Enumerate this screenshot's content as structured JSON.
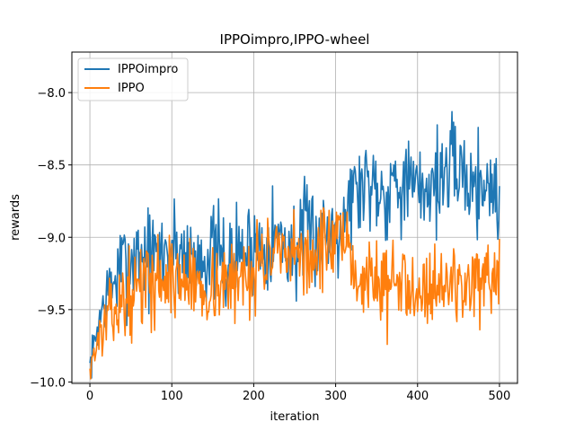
{
  "chart_data": {
    "type": "line",
    "title": "IPPOimpro,IPPO-wheel",
    "xlabel": "iteration",
    "ylabel": "rewards",
    "xlim": [
      -22,
      522
    ],
    "ylim": [
      -10.01,
      -7.72
    ],
    "xticks": [
      0,
      100,
      200,
      300,
      400,
      500
    ],
    "xtick_labels": [
      "0",
      "100",
      "200",
      "300",
      "400",
      "500"
    ],
    "yticks": [
      -10.0,
      -9.5,
      -9.0,
      -8.5,
      -8.0
    ],
    "ytick_labels": [
      "−10.0",
      "−9.5",
      "−9.0",
      "−8.5",
      "−8.0"
    ],
    "grid": true,
    "legend_position": "upper-left",
    "series": [
      {
        "name": "IPPOimpro",
        "color": "#1f77b4",
        "noise": 0.17,
        "seed": 7,
        "x": [
          0,
          5,
          10,
          15,
          20,
          30,
          40,
          50,
          60,
          70,
          80,
          90,
          100,
          110,
          120,
          130,
          140,
          150,
          160,
          170,
          180,
          190,
          200,
          210,
          220,
          230,
          240,
          250,
          260,
          270,
          280,
          290,
          300,
          310,
          320,
          330,
          340,
          350,
          360,
          370,
          380,
          390,
          400,
          410,
          420,
          430,
          440,
          450,
          460,
          470,
          480,
          490,
          500
        ],
        "y": [
          -9.9,
          -9.75,
          -9.6,
          -9.5,
          -9.4,
          -9.3,
          -9.2,
          -9.15,
          -9.1,
          -9.12,
          -9.15,
          -9.1,
          -9.05,
          -9.1,
          -9.12,
          -9.15,
          -9.12,
          -9.1,
          -9.15,
          -9.2,
          -9.1,
          -9.1,
          -9.05,
          -9.05,
          -9.0,
          -9.0,
          -9.05,
          -9.1,
          -9.0,
          -8.95,
          -9.0,
          -8.95,
          -8.9,
          -8.85,
          -8.7,
          -8.65,
          -8.6,
          -8.62,
          -8.7,
          -8.6,
          -8.6,
          -8.65,
          -8.7,
          -8.65,
          -8.6,
          -8.58,
          -8.55,
          -8.5,
          -8.6,
          -8.65,
          -8.6,
          -8.65,
          -8.75
        ]
      },
      {
        "name": "IPPO",
        "color": "#ff7f0e",
        "noise": 0.14,
        "seed": 13,
        "x": [
          0,
          5,
          10,
          15,
          20,
          30,
          40,
          50,
          60,
          70,
          80,
          90,
          100,
          110,
          120,
          130,
          140,
          150,
          160,
          170,
          180,
          190,
          200,
          210,
          220,
          230,
          240,
          250,
          260,
          270,
          280,
          290,
          300,
          310,
          320,
          330,
          340,
          350,
          360,
          370,
          380,
          390,
          400,
          410,
          420,
          430,
          440,
          450,
          460,
          470,
          480,
          490,
          500
        ],
        "y": [
          -9.9,
          -9.8,
          -9.72,
          -9.65,
          -9.58,
          -9.5,
          -9.45,
          -9.4,
          -9.35,
          -9.3,
          -9.3,
          -9.28,
          -9.28,
          -9.3,
          -9.3,
          -9.32,
          -9.35,
          -9.35,
          -9.3,
          -9.35,
          -9.3,
          -9.25,
          -9.2,
          -9.15,
          -9.1,
          -9.15,
          -9.2,
          -9.15,
          -9.1,
          -9.15,
          -9.1,
          -9.05,
          -9.0,
          -9.1,
          -9.2,
          -9.3,
          -9.25,
          -9.3,
          -9.35,
          -9.3,
          -9.35,
          -9.3,
          -9.3,
          -9.35,
          -9.3,
          -9.35,
          -9.3,
          -9.35,
          -9.3,
          -9.3,
          -9.35,
          -9.4,
          -9.35
        ]
      }
    ]
  }
}
